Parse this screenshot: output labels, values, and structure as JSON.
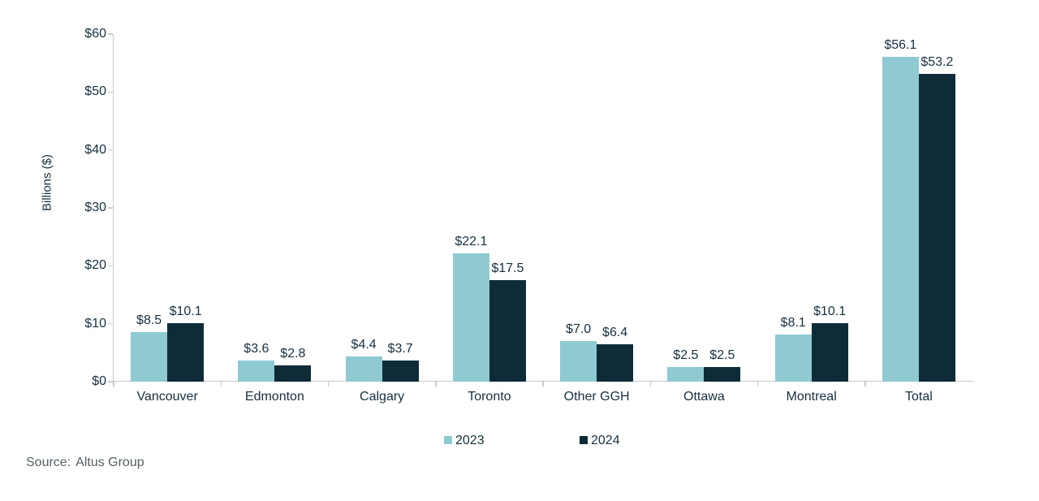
{
  "chart_data": {
    "type": "bar",
    "title": "",
    "xlabel": "",
    "ylabel": "Billions ($)",
    "categories": [
      "Vancouver",
      "Edmonton",
      "Calgary",
      "Toronto",
      "Other GGH",
      "Ottawa",
      "Montreal",
      "Total"
    ],
    "series": [
      {
        "name": "2023",
        "color": "#8fcad2",
        "values": [
          8.5,
          3.6,
          4.4,
          22.1,
          7.0,
          2.5,
          8.1,
          56.1
        ],
        "labels": [
          "$8.5",
          "$3.6",
          "$4.4",
          "$22.1",
          "$7.0",
          "$2.5",
          "$8.1",
          "$56.1"
        ]
      },
      {
        "name": "2024",
        "color": "#0e2c38",
        "values": [
          10.1,
          2.8,
          3.7,
          17.5,
          6.4,
          2.5,
          10.1,
          53.2
        ],
        "labels": [
          "$10.1",
          "$2.8",
          "$3.7",
          "$17.5",
          "$6.4",
          "$2.5",
          "$10.1",
          "$53.2"
        ]
      }
    ],
    "ylim": [
      0,
      60
    ],
    "y_ticks": {
      "values": [
        0,
        10,
        20,
        30,
        40,
        50,
        60
      ],
      "labels": [
        "$0",
        "$10",
        "$20",
        "$30",
        "$40",
        "$50",
        "$60"
      ]
    },
    "grid": false,
    "legend_position": "bottom"
  },
  "source": {
    "label": "Source:",
    "value": "Altus Group"
  },
  "colors": {
    "axis": "#c7cbcc",
    "text": "#16303d",
    "source_text": "#566066",
    "series_2023": "#8fcad2",
    "series_2024": "#0e2c38"
  }
}
